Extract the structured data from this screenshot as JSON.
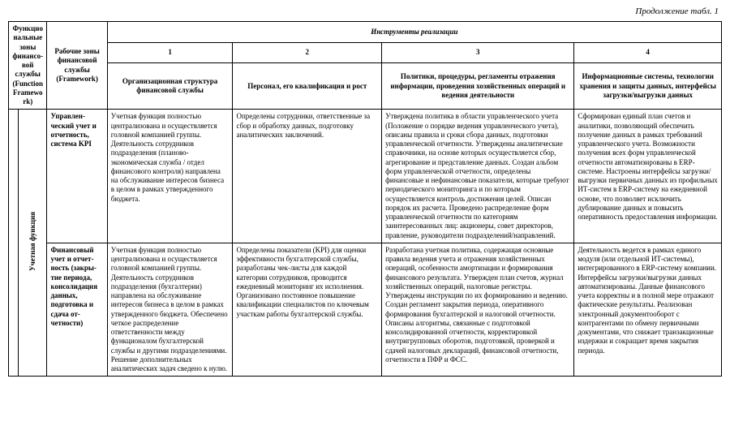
{
  "caption": "Продолжение табл. 1",
  "header": {
    "function_zones": "Функциональ­ные зоны финансо­вой службы (Function Framework)",
    "work_zones": "Рабочие зоны финансовой службы (Framework)",
    "instruments": "Инструменты реализации",
    "nums": {
      "n1": "1",
      "n2": "2",
      "n3": "3",
      "n4": "4"
    },
    "cols": {
      "org": "Организационная структура финансовой службы",
      "personnel": "Персонал, его квалификация и рост",
      "policies": "Политики, процедуры, регламенты отражения информации, проведения хозяйственных операций и ведения деятельности",
      "it": "Информационные системы, технологии хранения и защиты данных, интерфейсы загрузки/выгрузки данных"
    }
  },
  "side": {
    "sub_function": "Учетная функция"
  },
  "rows": [
    {
      "wz": "Управлен­ческий учет и отчетность, система KPI",
      "org": "Учетная функция полностью централизована и осуществляется головной компанией группы. Деятельность сотрудников подразделения (планово-экономическая служба / отдел финансового контроля) направлена на обслуживание интересов бизнеса в целом в рамках утвержденного бюджета.",
      "personnel": "Определены сотрудники, ответственные за сбор и обработку данных, подготовку аналитических заключений.",
      "policies": "Утверждена политика в области управленческого учета (Положение о порядке ведения управленческого учета), описаны правила и сроки сбора данных, подготовки управленческой отчетности. Утверждены аналитические справочники, на основе которых осуществляется сбор, агрегирование и представление данных. Создан альбом форм управленческой отчетности, определены финансовые и нефинансовые показатели, которые требуют периодического мониторинга и по которым осуществляется контроль достижения целей. Описан порядок их расчета. Проведено распределение форм управленческой отчетности по категориям заинтересованных лиц: акционеры, совет директоров, правление, руководители подразделений/направлений.",
      "it": "Сформирован единый план счетов и аналитики, позволяющий обеспечить получение данных в рамках требований управленческого учета. Возможности получения всех форм управленческой отчетности автоматизированы в ERP-системе. Настроены интерфейсы загрузки/выгрузки первичных данных из профильных ИТ-систем в ERP-систему на ежедневной основе, что позволяет исключить дублирование данных и повысить оперативность предоставления информации."
    },
    {
      "wz": "Финансовый учет и отчет­ность (закры­тие периода, консолида­ция данных, подготовка и сдача от­четности)",
      "org": "Учетная функция полностью централизована и осуществляется головной компанией группы. Деятельность сотрудников подразделения (бухгалтерии) направлена на обслуживание интересов бизнеса в целом в рамках утвержденного бюджета. Обеспечено четкое распределение ответственности между функционалом бухгалтерской службы и другими подразделениями. Решение дополнительных аналитических задач сведено к нулю.",
      "personnel": "Определены показатели (KPI) для оценки эффективности бухгалтерской службы, разработаны чек-листы для каждой категории сотрудников, проводится ежедневный мониторинг их исполнения. Организовано постоянное повышение квалификации специалистов по ключевым участкам работы бухгалтерской службы.",
      "policies": "Разработана учетная политика, содержащая основные правила ведения учета и отражения хозяйственных операций, особенности амортизации и формирования финансового результата. Утвержден план счетов, журнал хозяйственных операций, налоговые регистры. Утверждены инструкции по их формированию и ведению. Создан регламент закрытия периода, оперативного формирования бухгалтерской и налоговой отчетности. Описаны алгоритмы, связанные с подготовкой консолидированной отчетности, корректировкой внутригрупповых оборотов, подготовкой, проверкой и сдачей налоговых деклараций, финансовой отчетности, отчетности в ПФР и ФСС.",
      "it": "Деятельность ведется в рамках единого модуля (или отдельной ИТ-системы), интегрированного в ERP-систему компании. Интерфейсы загрузки/выгрузки данных автоматизированы. Данные финансового учета корректны и в полной мере отражают фактические результаты. Реализован электронный документооборот с контрагентами по обмену первичными документами, что снижает транзакционные издержки и сокращает время закрытия периода."
    }
  ]
}
